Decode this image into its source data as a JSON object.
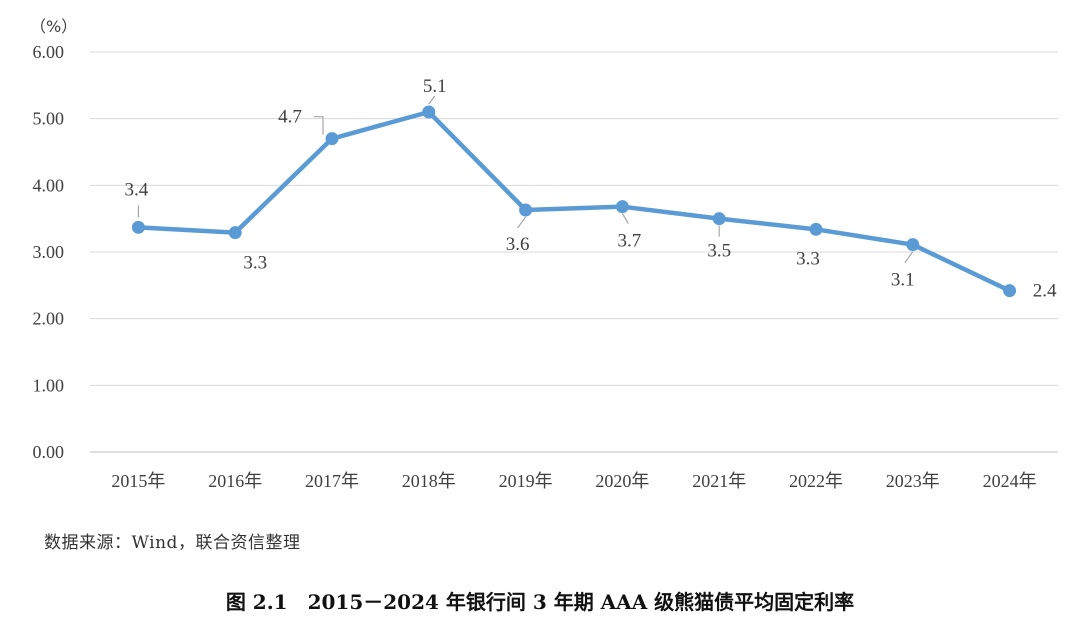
{
  "chart_data": {
    "type": "line",
    "unit_label": "（%）",
    "categories": [
      "2015年",
      "2016年",
      "2017年",
      "2018年",
      "2019年",
      "2020年",
      "2021年",
      "2022年",
      "2023年",
      "2024年"
    ],
    "values": [
      3.37,
      3.29,
      4.7,
      5.1,
      3.63,
      3.68,
      3.5,
      3.34,
      3.11,
      2.42
    ],
    "data_labels": [
      "3.4",
      "3.3",
      "4.7",
      "5.1",
      "3.6",
      "3.7",
      "3.5",
      "3.3",
      "3.1",
      "2.4"
    ],
    "ylim": [
      0,
      6
    ],
    "yticks": [
      "0.00",
      "1.00",
      "2.00",
      "3.00",
      "4.00",
      "5.00",
      "6.00"
    ],
    "grid": true,
    "legend": "none",
    "line_color": "#5B9BD5"
  },
  "source_text": "数据来源：Wind，联合资信整理",
  "caption_text": "图 2.1　2015－2024 年银行间 3 年期 AAA 级熊猫债平均固定利率"
}
